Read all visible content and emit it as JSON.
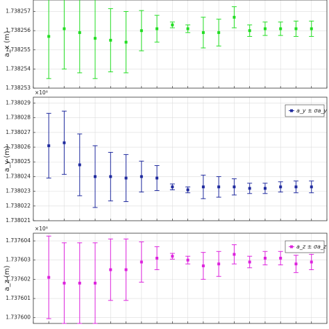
{
  "chart_data": [
    {
      "type": "errorbar",
      "ylabel": "a_x (m)",
      "grid": true,
      "x": [
        1,
        2,
        3,
        4,
        5,
        6,
        7,
        8,
        9,
        10,
        11,
        12,
        13,
        14,
        15,
        16,
        17,
        18
      ],
      "xlim": [
        0,
        19
      ],
      "xticks": [
        0,
        1,
        2,
        3,
        4,
        5,
        6,
        7,
        8,
        9,
        10,
        11,
        12,
        13,
        14,
        15,
        16,
        17,
        18,
        19
      ],
      "ylim": [
        1.738253,
        1.7382576
      ],
      "yticks": [
        1.738253,
        1.738254,
        1.738255,
        1.738256,
        1.738257
      ],
      "series": [
        {
          "color": "#22dd22",
          "values": [
            1.7382557,
            1.7382561,
            1.7382559,
            1.7382556,
            1.7382555,
            1.7382554,
            1.738256,
            1.7382561,
            1.7382563,
            1.7382561,
            1.7382559,
            1.7382559,
            1.7382567,
            1.738256,
            1.7382561,
            1.7382561,
            1.7382561,
            1.7382561
          ],
          "errors": [
            2.2e-06,
            2.1e-06,
            2.1e-06,
            2.1e-06,
            1.65e-06,
            1.6e-06,
            1.05e-06,
            7e-07,
            1.5e-07,
            2e-07,
            8e-07,
            7e-07,
            5.5e-07,
            3e-07,
            3.5e-07,
            3.5e-07,
            4e-07,
            4e-07
          ]
        }
      ]
    },
    {
      "type": "errorbar",
      "ylabel": "a_y (m)",
      "multiplier": "×10⁶",
      "grid": true,
      "legend": "upper right",
      "x": [
        1,
        2,
        3,
        4,
        5,
        6,
        7,
        8,
        9,
        10,
        11,
        12,
        13,
        14,
        15,
        16,
        17,
        18
      ],
      "xlim": [
        0,
        19
      ],
      "xticks": [
        0,
        1,
        2,
        3,
        4,
        5,
        6,
        7,
        8,
        9,
        10,
        11,
        12,
        13,
        14,
        15,
        16,
        17,
        18,
        19
      ],
      "ylim": [
        1.738021,
        1.7380294
      ],
      "yticks": [
        1.738021,
        1.738022,
        1.738023,
        1.738024,
        1.738025,
        1.738026,
        1.738027,
        1.738028,
        1.738029
      ],
      "series": [
        {
          "name": "a_y ± σa_y",
          "color": "#1f2a9e",
          "values": [
            1.7380261,
            1.7380263,
            1.7380248,
            1.738024,
            1.738024,
            1.7380239,
            1.738024,
            1.7380239,
            1.7380233,
            1.7380231,
            1.7380233,
            1.7380233,
            1.7380233,
            1.7380232,
            1.7380232,
            1.7380233,
            1.7380233,
            1.7380233
          ],
          "errors": [
            2.2e-06,
            2.15e-06,
            2.1e-06,
            2.1e-06,
            1.65e-06,
            1.6e-06,
            1.05e-06,
            8.5e-07,
            2e-07,
            2e-07,
            8e-07,
            7e-07,
            5.5e-07,
            3.5e-07,
            3.5e-07,
            3.5e-07,
            4e-07,
            4e-07
          ]
        }
      ]
    },
    {
      "type": "errorbar",
      "ylabel": "a_z (m)",
      "multiplier": "×10⁶",
      "grid": true,
      "legend": "upper right",
      "x": [
        1,
        2,
        3,
        4,
        5,
        6,
        7,
        8,
        9,
        10,
        11,
        12,
        13,
        14,
        15,
        16,
        17,
        18
      ],
      "xlim": [
        0,
        19
      ],
      "xticks": [
        0,
        1,
        2,
        3,
        4,
        5,
        6,
        7,
        8,
        9,
        10,
        11,
        12,
        13,
        14,
        15,
        16,
        17,
        18,
        19
      ],
      "ylim": [
        1.7375997,
        1.7376044
      ],
      "yticks": [
        {
          "value": 1.7376,
          "label": "1.737600"
        },
        1.737601,
        1.737602,
        1.737603,
        1.737604
      ],
      "series": [
        {
          "name": "a_z ± σa_z",
          "color": "#dd22dd",
          "values": [
            1.7376021,
            1.7376018,
            1.7376018,
            1.7376018,
            1.7376025,
            1.7376025,
            1.7376029,
            1.7376031,
            1.7376032,
            1.737603,
            1.7376027,
            1.7376028,
            1.7376033,
            1.7376029,
            1.7376031,
            1.7376031,
            1.7376028,
            1.7376029
          ],
          "errors": [
            2.15e-06,
            2.1e-06,
            2.1e-06,
            2.1e-06,
            1.6e-06,
            1.6e-06,
            1.05e-06,
            6e-07,
            1.5e-07,
            2e-07,
            7e-07,
            6.5e-07,
            5e-07,
            3e-07,
            3.5e-07,
            3.5e-07,
            4.5e-07,
            4e-07
          ]
        }
      ]
    }
  ]
}
